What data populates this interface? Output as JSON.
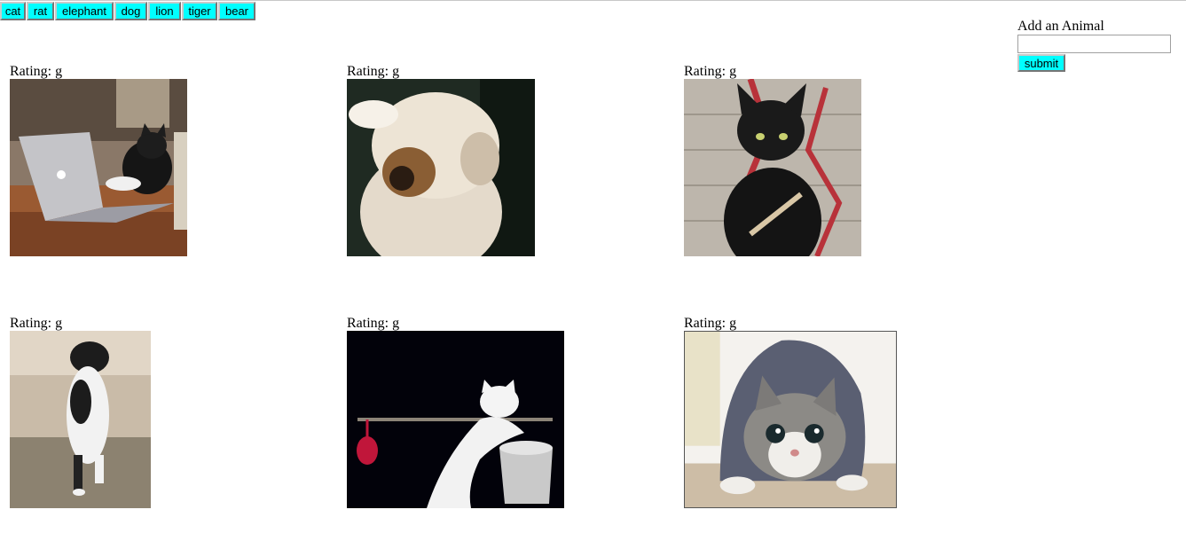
{
  "animal_buttons": [
    "cat",
    "rat",
    "elephant",
    "dog",
    "lion",
    "tiger",
    "bear"
  ],
  "gifs": [
    {
      "rating": "Rating: g",
      "subject": "cat typing on laptop"
    },
    {
      "rating": "Rating: g",
      "subject": "fluffy cat shaking head"
    },
    {
      "rating": "Rating: g",
      "subject": "black cat filing nails"
    },
    {
      "rating": "Rating: g",
      "subject": "cat standing on hind legs"
    },
    {
      "rating": "Rating: g",
      "subject": "white cat on horizontal bar"
    },
    {
      "rating": "Rating: g",
      "subject": "tabby kitten pouncing"
    }
  ],
  "add_form": {
    "label": "Add an Animal",
    "input_value": "",
    "submit_label": "submit"
  },
  "colors": {
    "button_bg": "#00ffff"
  }
}
